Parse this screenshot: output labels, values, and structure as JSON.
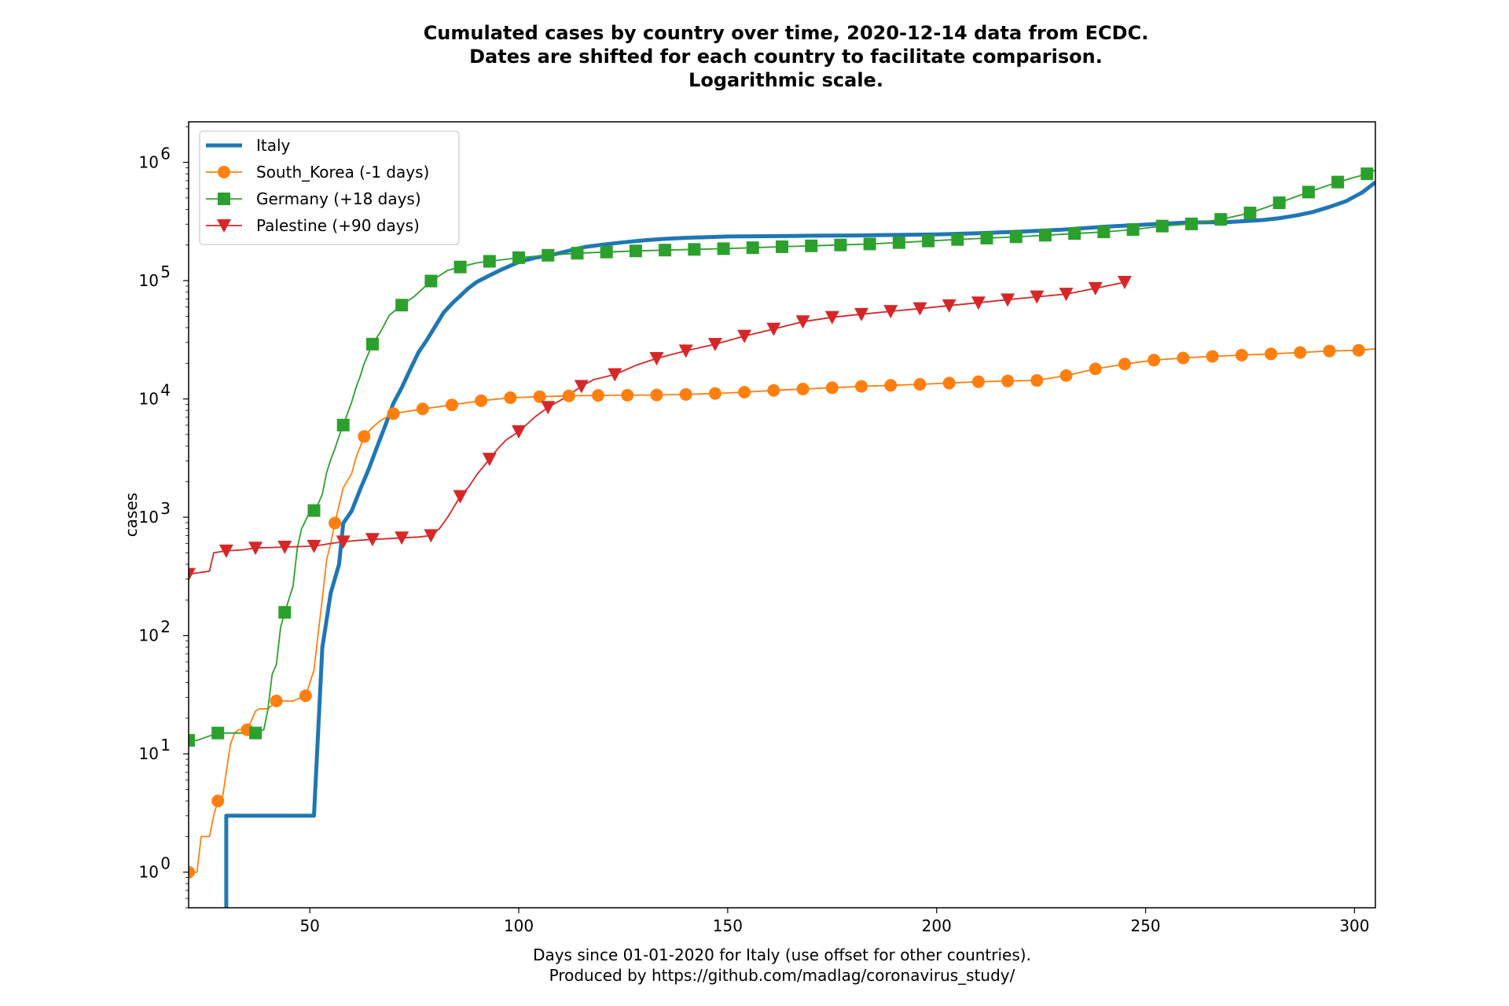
{
  "chart_data": {
    "type": "line",
    "title": [
      "Cumulated cases by country over time, 2020-12-14 data from ECDC.",
      "Dates are shifted for each country to facilitate comparison.",
      "Logarithmic scale."
    ],
    "xlabel": [
      "Days since 01-01-2020 for Italy (use offset for other countries).",
      "Produced by https://github.com/madlag/coronavirus_study/"
    ],
    "ylabel": "cases",
    "x_scale": "linear",
    "y_scale": "log",
    "xlim": [
      21,
      305
    ],
    "ylim": [
      0.5,
      2200000
    ],
    "x_ticks": [
      50,
      100,
      150,
      200,
      250,
      300
    ],
    "y_ticks": [
      {
        "value": 1,
        "base": "10",
        "exp": "0"
      },
      {
        "value": 10,
        "base": "10",
        "exp": "1"
      },
      {
        "value": 100,
        "base": "10",
        "exp": "2"
      },
      {
        "value": 1000,
        "base": "10",
        "exp": "3"
      },
      {
        "value": 10000,
        "base": "10",
        "exp": "4"
      },
      {
        "value": 100000,
        "base": "10",
        "exp": "5"
      },
      {
        "value": 1000000,
        "base": "10",
        "exp": "6"
      }
    ],
    "grid": false,
    "legend_position": "top-left",
    "series": [
      {
        "name": "Italy",
        "color": "#1f77b4",
        "marker": "none",
        "x": [
          30,
          30,
          32,
          40,
          51,
          51,
          53,
          55,
          57,
          58,
          60,
          62,
          64,
          66,
          68,
          70,
          72,
          74,
          76,
          78,
          80,
          82,
          84,
          86,
          88,
          90,
          93,
          96,
          100,
          104,
          108,
          112,
          116,
          120,
          125,
          130,
          135,
          140,
          150,
          160,
          170,
          180,
          190,
          200,
          210,
          220,
          230,
          240,
          250,
          260,
          270,
          278,
          282,
          286,
          290,
          294,
          298,
          302,
          305
        ],
        "y": [
          0.5,
          3,
          3,
          3,
          3,
          3,
          79,
          229,
          400,
          888,
          1128,
          1700,
          2502,
          3858,
          5883,
          9172,
          12462,
          17660,
          24747,
          31506,
          41035,
          53578,
          63927,
          74386,
          86498,
          97689,
          110574,
          124632,
          143626,
          156363,
          165155,
          178972,
          192994,
          201505,
          210717,
          219070,
          225435,
          230158,
          236142,
          237500,
          239706,
          240961,
          243506,
          246118,
          251713,
          259345,
          269214,
          285600,
          298000,
          310000,
          313011,
          325329,
          337000,
          355000,
          380000,
          420000,
          470000,
          560000,
          680000
        ]
      },
      {
        "name": "South_Korea (-1 days)",
        "color": "#ff7f0e",
        "marker": "circle",
        "x": [
          21,
          23,
          24,
          26,
          27,
          28,
          29,
          30,
          31,
          32,
          33,
          35,
          36,
          37,
          38,
          40,
          42,
          44,
          46,
          47,
          49,
          51,
          52,
          53,
          54,
          55,
          56,
          57,
          58,
          60,
          61,
          63,
          65,
          67,
          70,
          77,
          84,
          91,
          98,
          105,
          112,
          119,
          126,
          133,
          140,
          147,
          154,
          161,
          168,
          175,
          182,
          189,
          196,
          203,
          210,
          217,
          224,
          231,
          238,
          245,
          252,
          259,
          266,
          273,
          280,
          287,
          294,
          301,
          305
        ],
        "y": [
          1,
          1,
          2,
          2,
          3,
          4,
          4,
          7,
          12,
          15,
          16,
          16,
          19,
          23,
          24,
          24,
          28,
          28,
          28,
          29,
          31,
          51,
          104,
          204,
          433,
          602,
          893,
          1261,
          1766,
          2337,
          3150,
          4812,
          5766,
          6593,
          7513,
          8236,
          8897,
          9661,
          10237,
          10450,
          10613,
          10708,
          10752,
          10804,
          10909,
          11122,
          11402,
          11814,
          12121,
          12438,
          12773,
          13030,
          13293,
          13612,
          13981,
          14175,
          14336,
          15761,
          17945,
          19699,
          21296,
          22176,
          22893,
          23455,
          24027,
          24703,
          25424,
          25775,
          26500
        ]
      },
      {
        "name": "Germany (+18 days)",
        "color": "#2ca02c",
        "marker": "square",
        "x": [
          21,
          23,
          28,
          30,
          34,
          37,
          39,
          40,
          41,
          42,
          43,
          44,
          46,
          47,
          48,
          50,
          51,
          52,
          53,
          54,
          55,
          56,
          57,
          58,
          60,
          61,
          62,
          63,
          65,
          67,
          69,
          72,
          75,
          79,
          83,
          86,
          90,
          93,
          100,
          107,
          114,
          121,
          128,
          135,
          142,
          149,
          156,
          163,
          170,
          177,
          184,
          191,
          198,
          205,
          212,
          219,
          226,
          233,
          240,
          247,
          254,
          261,
          268,
          275,
          282,
          289,
          296,
          303,
          305
        ],
        "y": [
          13,
          13,
          15,
          15,
          15,
          15,
          16,
          24,
          47,
          57,
          117,
          157,
          262,
          545,
          795,
          1112,
          1139,
          1296,
          1567,
          2369,
          3062,
          3795,
          4838,
          6012,
          9367,
          12327,
          15320,
          19848,
          29056,
          37323,
          50871,
          62095,
          73522,
          99225,
          122171,
          130450,
          141397,
          145694,
          156337,
          163860,
          170508,
          174478,
          178281,
          181196,
          183594,
          186269,
          189817,
          193499,
          196780,
          200180,
          204183,
          209653,
          216327,
          222828,
          228620,
          234494,
          242126,
          249985,
          258149,
          270070,
          289219,
          301573,
          329453,
          373167,
          455000,
          560379,
          681000,
          800000,
          860000
        ]
      },
      {
        "name": "Palestine (+90 days)",
        "color": "#d62728",
        "marker": "triangle_down",
        "x": [
          21,
          26,
          27,
          30,
          34,
          37,
          41,
          44,
          48,
          51,
          55,
          58,
          62,
          65,
          69,
          72,
          76,
          79,
          81,
          83,
          86,
          88,
          90,
          93,
          95,
          97,
          100,
          104,
          107,
          111,
          115,
          118,
          123,
          128,
          133,
          140,
          147,
          154,
          161,
          168,
          175,
          182,
          189,
          196,
          203,
          210,
          217,
          224,
          231,
          238,
          245
        ],
        "y": [
          330,
          350,
          500,
          520,
          530,
          550,
          555,
          560,
          565,
          570,
          600,
          620,
          640,
          650,
          660,
          670,
          680,
          700,
          800,
          1000,
          1500,
          1800,
          2300,
          3100,
          3800,
          4500,
          5300,
          7100,
          8500,
          10200,
          12800,
          14600,
          16100,
          19200,
          22000,
          25500,
          29000,
          34000,
          39000,
          45000,
          49000,
          52000,
          55000,
          58000,
          61500,
          65000,
          69000,
          73000,
          77000,
          86000,
          97000
        ]
      }
    ]
  }
}
